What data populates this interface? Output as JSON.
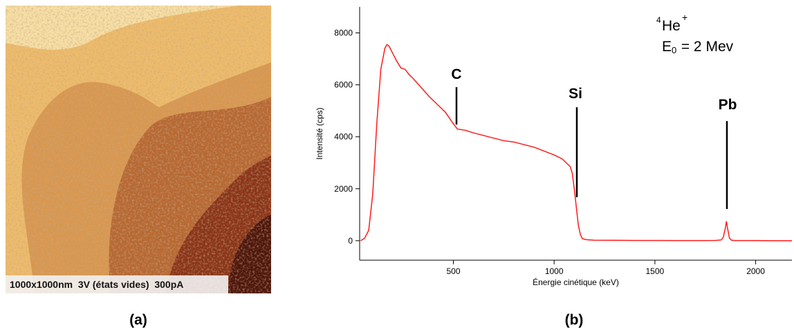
{
  "panels": {
    "image_label": "1000x1000nm  3V (états vides)  300pA",
    "caption_a": "(a)",
    "caption_b": "(b)"
  },
  "chart_data": {
    "type": "line",
    "x_label": "Énergie cinétique (keV)",
    "y_label": "Intensité (cps)",
    "x": [
      40,
      60,
      80,
      100,
      120,
      140,
      160,
      170,
      180,
      200,
      220,
      240,
      260,
      280,
      300,
      340,
      380,
      420,
      460,
      500,
      520,
      560,
      600,
      650,
      700,
      750,
      800,
      850,
      900,
      950,
      1000,
      1040,
      1060,
      1080,
      1090,
      1100,
      1110,
      1120,
      1130,
      1140,
      1160,
      1200,
      1300,
      1400,
      1500,
      1600,
      1700,
      1800,
      1830,
      1840,
      1850,
      1855,
      1860,
      1870,
      1880,
      1900,
      2000,
      2100,
      2180
    ],
    "series": [
      {
        "color": "#ff1a1a",
        "values": [
          0,
          100,
          400,
          1800,
          4500,
          6600,
          7400,
          7550,
          7500,
          7200,
          6900,
          6650,
          6600,
          6400,
          6250,
          5900,
          5550,
          5250,
          4950,
          4500,
          4300,
          4250,
          4150,
          4050,
          3950,
          3850,
          3800,
          3700,
          3600,
          3450,
          3300,
          3150,
          3000,
          2850,
          2600,
          2000,
          1300,
          600,
          250,
          80,
          40,
          20,
          15,
          10,
          10,
          5,
          5,
          10,
          30,
          150,
          500,
          750,
          500,
          100,
          20,
          5,
          5,
          0,
          0
        ]
      }
    ],
    "xlim": [
      35,
      2180
    ],
    "ylim": [
      -750,
      9000
    ],
    "xticks": [
      500,
      1000,
      1500,
      2000
    ],
    "yticks": [
      0,
      2000,
      4000,
      6000,
      8000
    ],
    "annotations": [
      "C",
      "Si",
      "Pb"
    ],
    "beam": {
      "mass": "4",
      "ion": "He",
      "charge": "+",
      "symbol": "E",
      "subscript": "0",
      "energy": " = 2 Mev"
    }
  }
}
